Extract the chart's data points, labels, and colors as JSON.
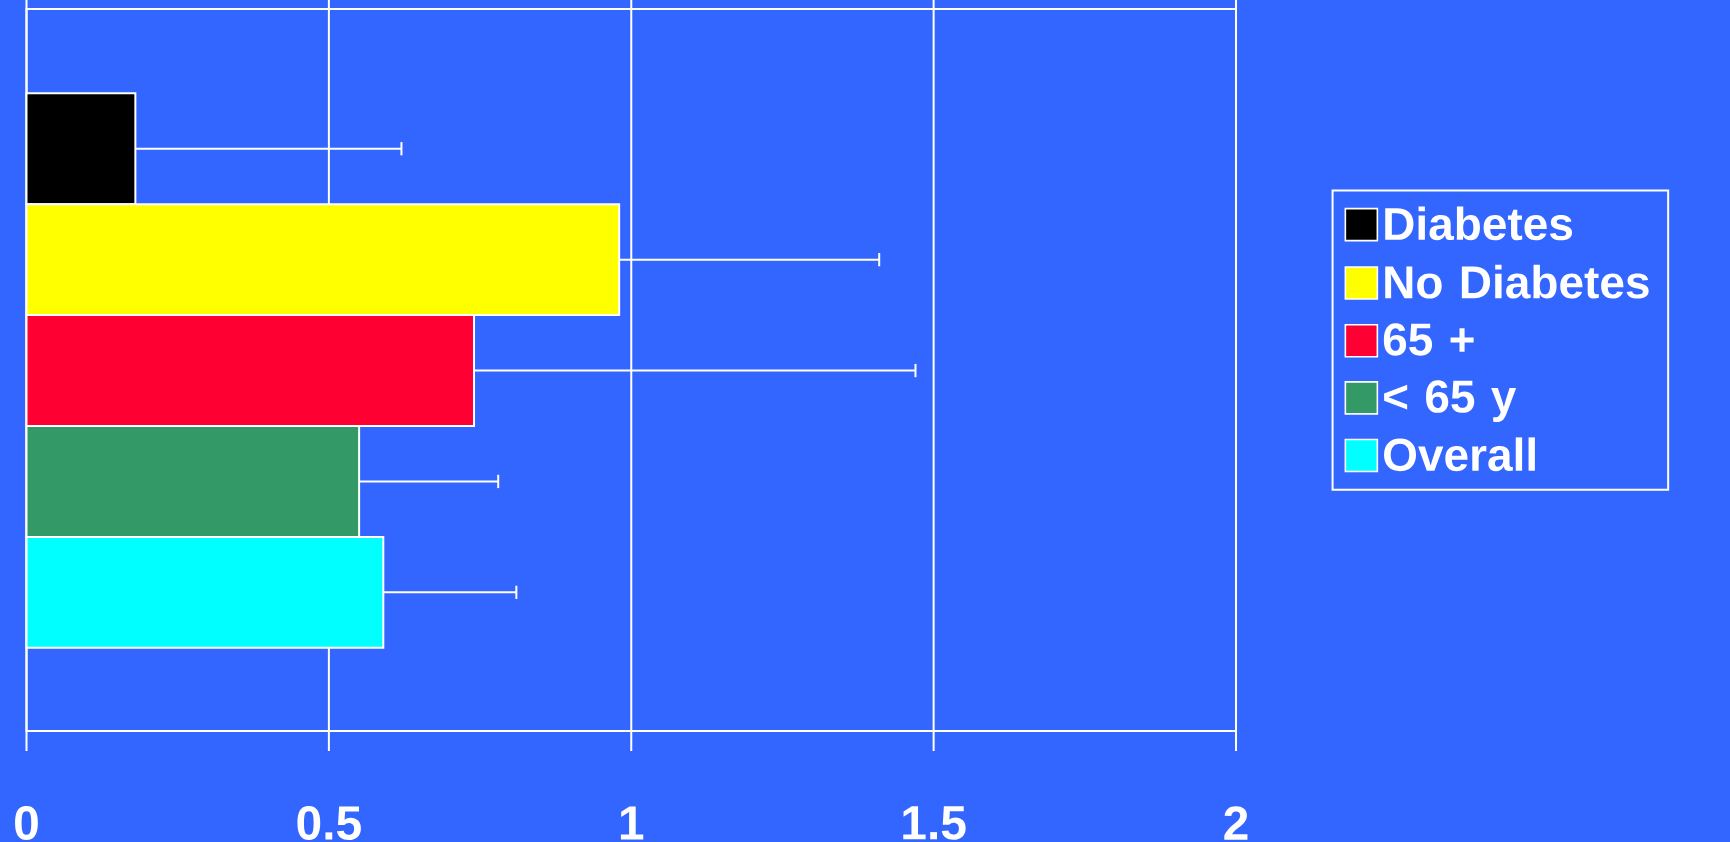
{
  "chart_data": {
    "type": "bar",
    "orientation": "horizontal",
    "categories": [
      null,
      null,
      null,
      null,
      null
    ],
    "series": [
      {
        "name": "Diabetes",
        "color": "#000000",
        "values": [
          0.18,
          null,
          null,
          null,
          null
        ],
        "errors": [
          [
            0.18,
            0.62
          ],
          null,
          null,
          null,
          null
        ]
      },
      {
        "name": "No Diabetes",
        "color": "#ffff00",
        "values": [
          null,
          0.98,
          null,
          null,
          null
        ],
        "errors": [
          null,
          [
            0.98,
            1.41
          ],
          null,
          null,
          null
        ]
      },
      {
        "name": "65 +",
        "color": "#ff0033",
        "values": [
          null,
          null,
          0.74,
          null,
          null
        ],
        "errors": [
          null,
          null,
          [
            0.74,
            1.47
          ],
          null,
          null
        ]
      },
      {
        "name": "< 65 y",
        "color": "#339966",
        "values": [
          null,
          null,
          null,
          0.55,
          null
        ],
        "errors": [
          null,
          null,
          null,
          [
            0.55,
            0.78
          ],
          null
        ]
      },
      {
        "name": "Overall",
        "color": "#00ffff",
        "values": [
          null,
          null,
          null,
          null,
          0.59
        ],
        "errors": [
          null,
          null,
          null,
          null,
          [
            0.59,
            0.81
          ]
        ]
      }
    ],
    "xlim": [
      0,
      2
    ],
    "xticks": [
      0,
      0.5,
      1,
      1.5,
      2
    ],
    "grid": "x",
    "legend": "right"
  }
}
